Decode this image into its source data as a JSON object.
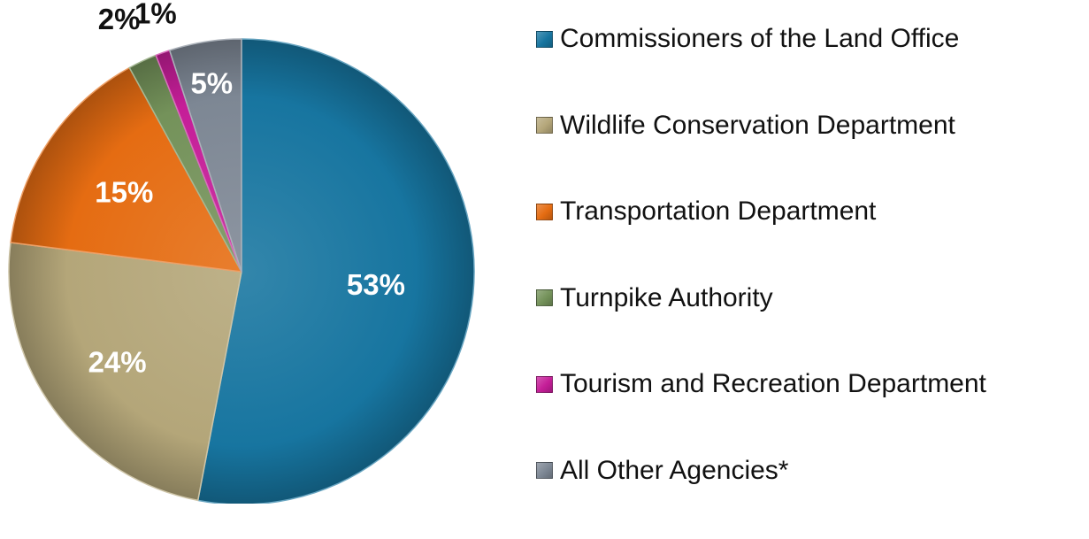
{
  "chart_data": {
    "type": "pie",
    "title": "",
    "categories": [
      "Commissioners of the Land Office",
      "Wildlife Conservation Department",
      "Transportation Department",
      "Turnpike Authority",
      "Tourism and Recreation Department",
      "All Other Agencies*"
    ],
    "values": [
      53,
      24,
      15,
      2,
      1,
      5
    ],
    "data_labels": [
      "53%",
      "24%",
      "15%",
      "2%",
      "1%",
      "5%"
    ],
    "colors": [
      "#1775a0",
      "#b4a679",
      "#e56c12",
      "#74925a",
      "#c51e98",
      "#7d8794"
    ],
    "label_colors": [
      "#ffffff",
      "#ffffff",
      "#ffffff",
      "#111111",
      "#111111",
      "#ffffff"
    ],
    "legend_position": "right",
    "start_angle_deg": 0,
    "direction": "clockwise"
  }
}
